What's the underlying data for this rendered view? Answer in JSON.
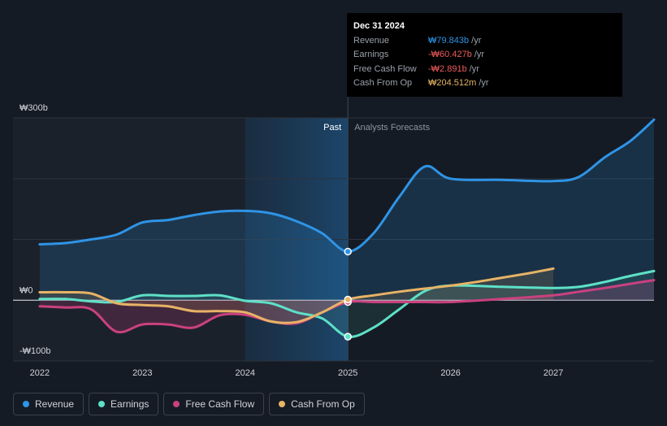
{
  "chart_data": {
    "type": "line",
    "y_ticks": [
      {
        "label": "₩300b",
        "value": 300
      },
      {
        "label": "₩0",
        "value": 0
      },
      {
        "label": "-₩100b",
        "value": -100
      }
    ],
    "x_ticks": [
      {
        "label": "2022",
        "value": 2022.0
      },
      {
        "label": "2023",
        "value": 2023.0
      },
      {
        "label": "2024",
        "value": 2024.0
      },
      {
        "label": "2025",
        "value": 2025.0
      },
      {
        "label": "2026",
        "value": 2026.0
      },
      {
        "label": "2027",
        "value": 2027.0
      }
    ],
    "xlim": [
      2021.74,
      2027.98
    ],
    "ylim": [
      -100,
      300
    ],
    "past_label": "Past",
    "forecast_label": "Analysts Forecasts",
    "divider_x": 2025.0,
    "highlight_start": 2024.0,
    "series": [
      {
        "name": "Revenue",
        "color": "#2f94e6",
        "points": [
          [
            2022.0,
            92
          ],
          [
            2022.25,
            94
          ],
          [
            2022.5,
            100
          ],
          [
            2022.75,
            108
          ],
          [
            2023.0,
            128
          ],
          [
            2023.25,
            132
          ],
          [
            2023.5,
            140
          ],
          [
            2023.75,
            146
          ],
          [
            2024.0,
            147
          ],
          [
            2024.25,
            143
          ],
          [
            2024.5,
            130
          ],
          [
            2024.75,
            110
          ],
          [
            2025.0,
            80
          ],
          [
            2025.25,
            110
          ],
          [
            2025.5,
            170
          ],
          [
            2025.75,
            220
          ],
          [
            2026.0,
            200
          ],
          [
            2026.5,
            198
          ],
          [
            2027.0,
            196
          ],
          [
            2027.25,
            203
          ],
          [
            2027.5,
            235
          ],
          [
            2027.75,
            262
          ],
          [
            2027.98,
            297
          ]
        ]
      },
      {
        "name": "Earnings",
        "color": "#5ee0c7",
        "points": [
          [
            2022.0,
            2
          ],
          [
            2022.25,
            2
          ],
          [
            2022.5,
            -2
          ],
          [
            2022.75,
            -3
          ],
          [
            2023.0,
            8
          ],
          [
            2023.25,
            7
          ],
          [
            2023.5,
            7
          ],
          [
            2023.75,
            8
          ],
          [
            2024.0,
            -1
          ],
          [
            2024.25,
            -5
          ],
          [
            2024.5,
            -20
          ],
          [
            2024.75,
            -30
          ],
          [
            2025.0,
            -60
          ],
          [
            2025.25,
            -45
          ],
          [
            2025.5,
            -15
          ],
          [
            2025.75,
            15
          ],
          [
            2026.0,
            24
          ],
          [
            2026.5,
            22
          ],
          [
            2027.0,
            20
          ],
          [
            2027.25,
            22
          ],
          [
            2027.5,
            30
          ],
          [
            2027.75,
            40
          ],
          [
            2027.98,
            48
          ]
        ]
      },
      {
        "name": "Free Cash Flow",
        "color": "#c9417f",
        "points": [
          [
            2022.0,
            -10
          ],
          [
            2022.25,
            -12
          ],
          [
            2022.5,
            -15
          ],
          [
            2022.75,
            -52
          ],
          [
            2023.0,
            -40
          ],
          [
            2023.25,
            -40
          ],
          [
            2023.5,
            -45
          ],
          [
            2023.75,
            -25
          ],
          [
            2024.0,
            -24
          ],
          [
            2024.25,
            -35
          ],
          [
            2024.5,
            -38
          ],
          [
            2024.75,
            -20
          ],
          [
            2025.0,
            -3
          ],
          [
            2025.25,
            -3
          ],
          [
            2025.5,
            -3
          ],
          [
            2025.75,
            -3
          ],
          [
            2026.0,
            -3
          ],
          [
            2026.5,
            2
          ],
          [
            2027.0,
            8
          ],
          [
            2027.25,
            14
          ],
          [
            2027.5,
            20
          ],
          [
            2027.75,
            27
          ],
          [
            2027.98,
            33
          ]
        ]
      },
      {
        "name": "Cash From Op",
        "color": "#e7b366",
        "points": [
          [
            2022.0,
            13
          ],
          [
            2022.25,
            13
          ],
          [
            2022.5,
            11
          ],
          [
            2022.75,
            -5
          ],
          [
            2023.0,
            -8
          ],
          [
            2023.25,
            -10
          ],
          [
            2023.5,
            -18
          ],
          [
            2023.75,
            -18
          ],
          [
            2024.0,
            -20
          ],
          [
            2024.25,
            -35
          ],
          [
            2024.5,
            -36
          ],
          [
            2024.75,
            -20
          ],
          [
            2025.0,
            1
          ],
          [
            2025.25,
            8
          ],
          [
            2025.5,
            14
          ],
          [
            2025.75,
            19
          ],
          [
            2026.0,
            24
          ],
          [
            2026.25,
            30
          ],
          [
            2026.5,
            37
          ],
          [
            2026.75,
            44
          ],
          [
            2027.0,
            52
          ]
        ]
      }
    ],
    "markers": [
      {
        "series": "Revenue",
        "x": 2025.0,
        "y": 80
      },
      {
        "series": "Earnings",
        "x": 2025.0,
        "y": -60
      },
      {
        "series": "Free Cash Flow",
        "x": 2025.0,
        "y": -3
      },
      {
        "series": "Cash From Op",
        "x": 2025.0,
        "y": 1
      }
    ]
  },
  "tooltip": {
    "date": "Dec 31 2024",
    "rows": [
      {
        "label": "Revenue",
        "value": "₩79.843b",
        "unit": "/yr",
        "color": "#2f94e6"
      },
      {
        "label": "Earnings",
        "value": "-₩60.427b",
        "unit": "/yr",
        "color": "#f05a5a"
      },
      {
        "label": "Free Cash Flow",
        "value": "-₩2.891b",
        "unit": "/yr",
        "color": "#f05a5a"
      },
      {
        "label": "Cash From Op",
        "value": "₩204.512m",
        "unit": "/yr",
        "color": "#e7b366"
      }
    ]
  },
  "legend": [
    {
      "label": "Revenue",
      "color": "#2f94e6"
    },
    {
      "label": "Earnings",
      "color": "#5ee0c7"
    },
    {
      "label": "Free Cash Flow",
      "color": "#c9417f"
    },
    {
      "label": "Cash From Op",
      "color": "#e7b366"
    }
  ]
}
